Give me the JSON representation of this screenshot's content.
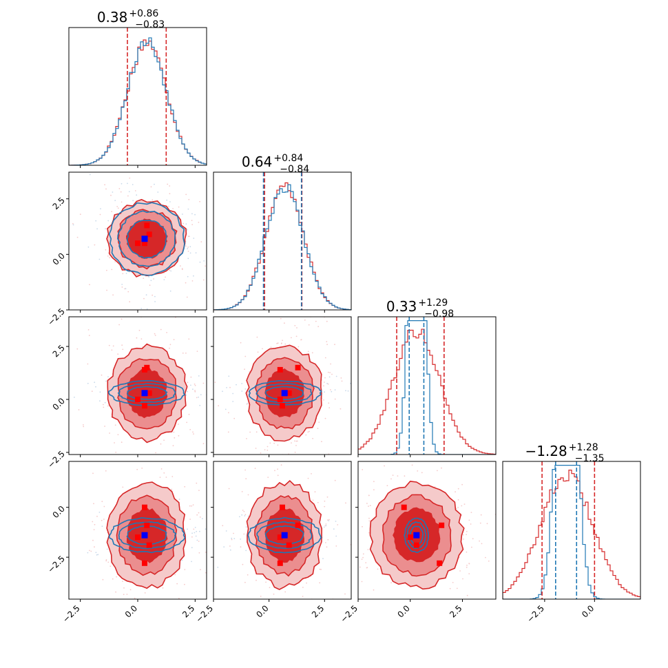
{
  "chart_data": {
    "type": "corner",
    "parameters": 4,
    "colors": {
      "red": "#d62728",
      "red_mid": "#eb8e8f",
      "red_light": "#f5caca",
      "blue": "#1f77b4",
      "marker_red": "#ff0000",
      "marker_blue": "#0000ff"
    },
    "params": [
      {
        "index": 0,
        "mean": 0.4,
        "red_sd": 0.85,
        "blue_sd": 0.85,
        "xlim": [
          -3.0,
          3.0
        ],
        "ylim": [
          -2.5,
          3.7
        ],
        "title": {
          "value": "0.38",
          "sup": "+0.86",
          "sub": "−0.83"
        },
        "red_q": [
          -0.45,
          0.38,
          1.24
        ],
        "blue_q": [],
        "y_ticks": [],
        "x_ticks": [
          -2.5,
          0.0,
          2.5
        ]
      },
      {
        "index": 1,
        "mean": 0.7,
        "red_sd": 0.85,
        "blue_sd": 0.85,
        "xlim": [
          -2.5,
          3.7
        ],
        "ylim": [
          -2.5,
          3.7
        ],
        "title": {
          "value": "0.64",
          "sup": "+0.84",
          "sub": "−0.84"
        },
        "red_q": [
          -0.2,
          0.64,
          1.48
        ],
        "blue_q": [
          -0.25,
          1.46
        ],
        "y_ticks": [
          -2.5,
          0.0,
          2.5
        ],
        "x_ticks": [
          -2.5,
          0.0,
          2.5
        ]
      },
      {
        "index": 2,
        "mean": 0.3,
        "red_sd": 1.1,
        "blue_sd": 0.3,
        "xlim": [
          -2.5,
          4.1
        ],
        "ylim": [
          -2.6,
          3.9
        ],
        "title": {
          "value": "0.33",
          "sup": "+1.29",
          "sub": "−0.98"
        },
        "red_q": [
          -0.65,
          0.33,
          1.62
        ],
        "blue_q": [
          -0.05,
          0.65
        ],
        "y_ticks": [
          -2.5,
          0.0,
          2.5
        ],
        "x_ticks": [
          -2.5,
          0.0,
          2.5
        ]
      },
      {
        "index": 3,
        "mean": -1.4,
        "red_sd": 1.3,
        "blue_sd": 0.45,
        "xlim": [
          -4.6,
          2.3
        ],
        "ylim": [
          -4.6,
          2.3
        ],
        "title": {
          "value": "−1.28",
          "sup": "+1.28",
          "sub": "−1.35"
        },
        "red_q": [
          -2.63,
          -1.28,
          0.0
        ],
        "blue_q": [
          -1.95,
          -0.9
        ],
        "y_ticks": [
          -2.5,
          0.0
        ],
        "x_ticks": [
          -2.5,
          0.0
        ]
      }
    ],
    "markers": {
      "red": [
        [
          0.0,
          0.5,
          0.0,
          -1.5
        ],
        [
          0.3,
          0.5,
          1.4,
          -2.8
        ],
        [
          0.4,
          1.3,
          1.5,
          -0.9
        ],
        [
          0.5,
          0.9,
          0.3,
          -1.9
        ],
        [
          0.3,
          0.6,
          -0.3,
          0.0
        ]
      ],
      "blue": [
        0.3,
        0.7,
        0.3,
        -1.4
      ]
    }
  }
}
